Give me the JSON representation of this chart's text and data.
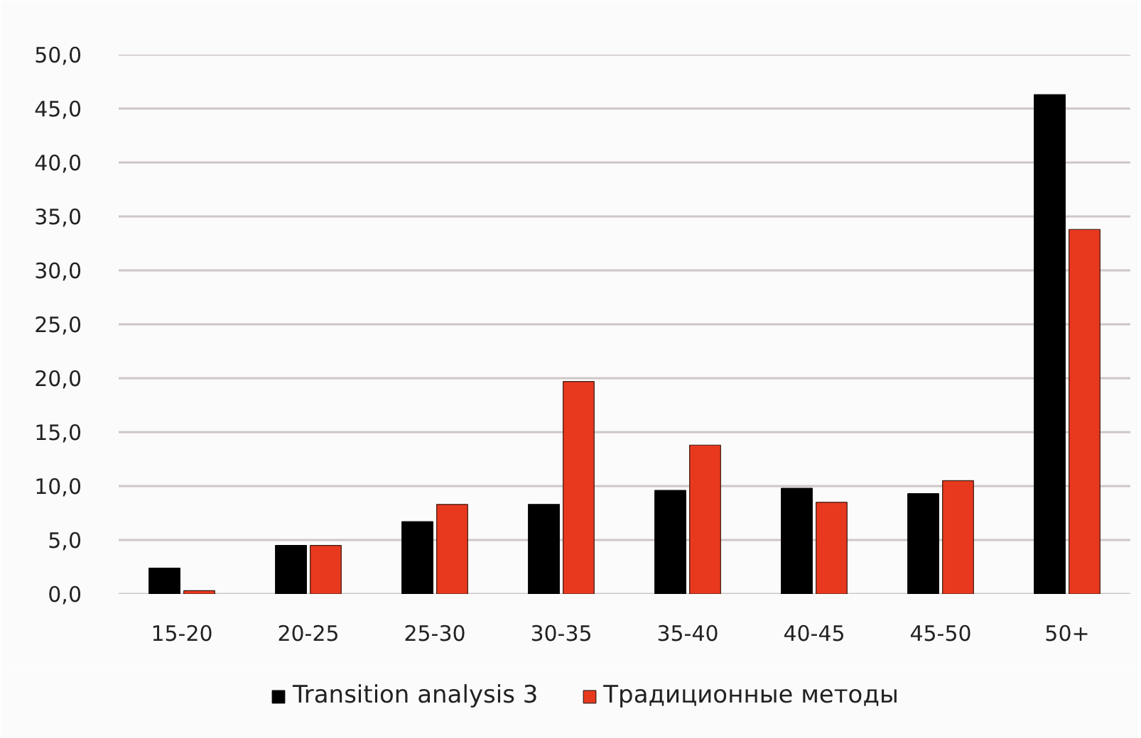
{
  "chart_data": {
    "type": "bar",
    "categories": [
      "15-20",
      "20-25",
      "25-30",
      "30-35",
      "35-40",
      "40-45",
      "45-50",
      "50+"
    ],
    "series": [
      {
        "name": "Transition analysis 3",
        "color": "#000000",
        "values": [
          2.4,
          4.5,
          6.7,
          8.3,
          9.6,
          9.8,
          9.3,
          46.3
        ]
      },
      {
        "name": "Традиционные методы",
        "color": "#e8391f",
        "values": [
          0.3,
          4.5,
          8.3,
          19.7,
          13.8,
          8.5,
          10.5,
          33.8
        ]
      }
    ],
    "ylim": [
      0,
      50
    ],
    "yticks": [
      {
        "value": 0,
        "label": "0,0"
      },
      {
        "value": 5,
        "label": "5,0"
      },
      {
        "value": 10,
        "label": "10,0"
      },
      {
        "value": 15,
        "label": "15,0"
      },
      {
        "value": 20,
        "label": "20,0"
      },
      {
        "value": 25,
        "label": "25,0"
      },
      {
        "value": 30,
        "label": "30,0"
      },
      {
        "value": 35,
        "label": "35,0"
      },
      {
        "value": 40,
        "label": "40,0"
      },
      {
        "value": 45,
        "label": "45,0"
      },
      {
        "value": 50,
        "label": "50,0"
      }
    ],
    "grid": "y",
    "legend": "bottom"
  }
}
